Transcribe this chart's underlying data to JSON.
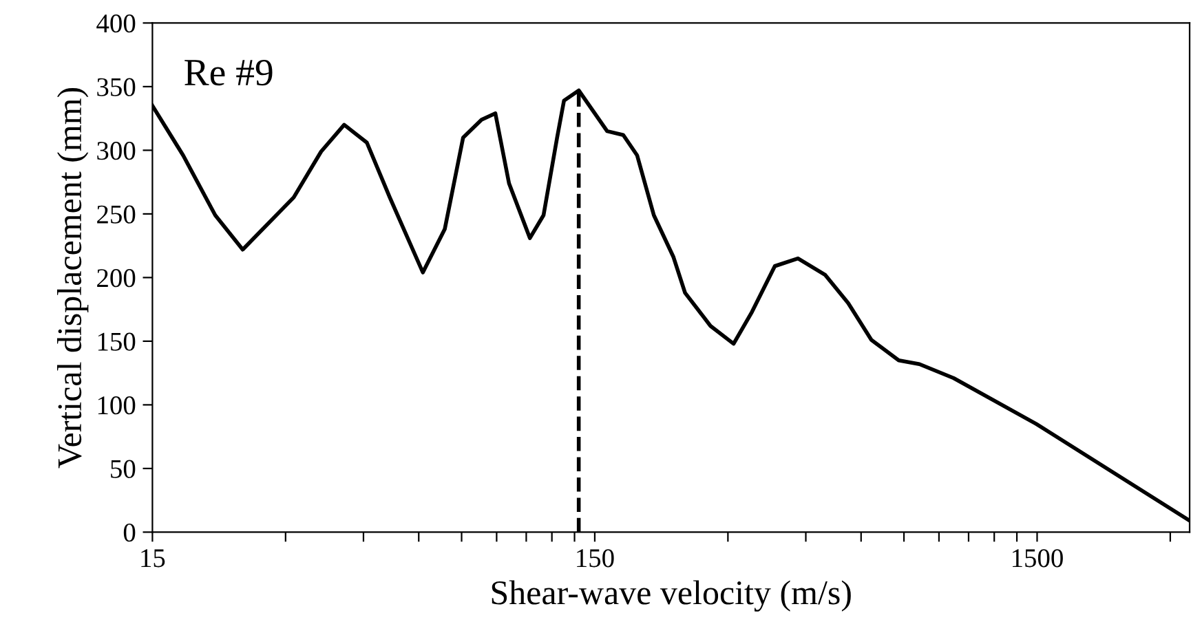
{
  "chart_data": {
    "type": "line",
    "xlabel": "Shear-wave velocity (m/s)",
    "ylabel": "Vertical displacement (mm)",
    "annotations": [
      "Re #9"
    ],
    "log": "x",
    "xlim": [
      15,
      3318
    ],
    "xticks": [
      15,
      {
        "value": 30,
        "label": null
      },
      {
        "value": 45,
        "label": null
      },
      {
        "value": 60,
        "label": null
      },
      {
        "value": 75,
        "label": null
      },
      {
        "value": 90,
        "label": null
      },
      {
        "value": 105,
        "label": null
      },
      {
        "value": 120,
        "label": null
      },
      {
        "value": 135,
        "label": null
      },
      150,
      {
        "value": 300,
        "label": null
      },
      {
        "value": 450,
        "label": null
      },
      {
        "value": 600,
        "label": null
      },
      {
        "value": 750,
        "label": null
      },
      {
        "value": 900,
        "label": null
      },
      {
        "value": 1050,
        "label": null
      },
      {
        "value": 1200,
        "label": null
      },
      {
        "value": 1350,
        "label": null
      },
      1500,
      {
        "value": 3000,
        "label": null
      }
    ],
    "ylim": [
      0,
      400
    ],
    "yticks": [
      0,
      50,
      100,
      150,
      200,
      250,
      300,
      350,
      400
    ],
    "grid": false,
    "legend": false,
    "marker": "none",
    "line_style": "solid",
    "ref_lines": [
      {
        "axis": "x",
        "value": 138,
        "label": null,
        "color": "#000000",
        "line_style": "dashed"
      }
    ],
    "series": [
      {
        "color": "#000000",
        "x": [
          15,
          17.6,
          20.8,
          24.0,
          31.3,
          36.1,
          40.7,
          45.8,
          51.6,
          61.3,
          68.7,
          75.6,
          83.2,
          89.4,
          96.0,
          107,
          114.9,
          123.3,
          127.8,
          138,
          160,
          174,
          187,
          204,
          226,
          240,
          274,
          309,
          340,
          383,
          432,
          498,
          561,
          633,
          730,
          813,
          971,
          1493,
          3318
        ],
        "values": [
          335,
          296,
          249,
          222,
          263,
          299,
          320,
          306,
          263,
          204,
          238,
          310,
          324,
          329,
          274,
          231,
          249,
          310,
          339,
          347,
          315,
          312,
          296,
          249,
          216,
          188,
          162,
          148,
          173,
          209,
          215,
          202,
          180,
          151,
          135,
          132,
          121,
          85,
          9
        ]
      }
    ]
  }
}
